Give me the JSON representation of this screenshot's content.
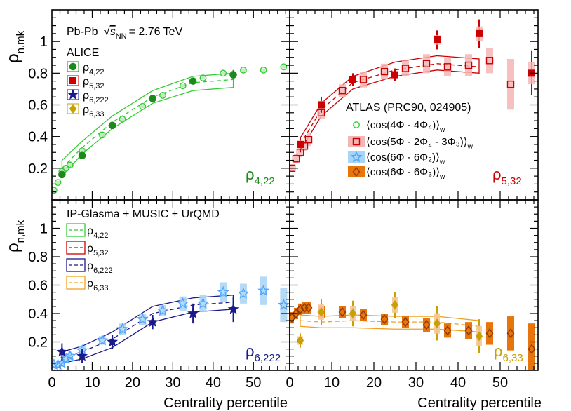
{
  "figure": {
    "ylabel_main": "ρ",
    "ylabel_sub": "n,mk",
    "xlabel": "Centrality percentile"
  },
  "colors": {
    "green": "#1b8a1b",
    "green_light": "#33cc33",
    "green_band": "#b8e8b8",
    "red": "#cc0000",
    "red_band": "#f5b5b5",
    "blue": "#1a1a8c",
    "blue_light": "#4da6ff",
    "blue_band": "#a8d4f5",
    "gold": "#c8a000",
    "gold_band": "#f5c896",
    "orange": "#e8740c",
    "orange_line": "#f0a020",
    "dark": "#8b3a0a"
  },
  "legend_alice": {
    "system": "Pb-Pb",
    "energy_var": "s",
    "energy_sub": "NN",
    "energy_value": "= 2.76 TeV",
    "experiment": "ALICE",
    "entries": [
      {
        "main": "ρ",
        "sub": "4,22"
      },
      {
        "main": "ρ",
        "sub": "5,32"
      },
      {
        "main": "ρ",
        "sub": "6,222"
      },
      {
        "main": "ρ",
        "sub": "6,33"
      }
    ]
  },
  "legend_atlas": {
    "title": "ATLAS (PRC90, 024905)",
    "entries": [
      {
        "text": "⟨cos(4Φ - 4Φ₄)⟩",
        "sub": "w"
      },
      {
        "text": "⟨cos(5Φ - 2Φ₂ - 3Φ₃)⟩",
        "sub": "w"
      },
      {
        "text": "⟨cos(6Φ - 6Φ₂)⟩",
        "sub": "w"
      },
      {
        "text": "⟨cos(6Φ - 6Φ₃)⟩",
        "sub": "w"
      }
    ]
  },
  "legend_model": {
    "title": "IP-Glasma + MUSIC + UrQMD",
    "entries": [
      {
        "main": "ρ",
        "sub": "4,22"
      },
      {
        "main": "ρ",
        "sub": "5,32"
      },
      {
        "main": "ρ",
        "sub": "6,222"
      },
      {
        "main": "ρ",
        "sub": "6,33"
      }
    ]
  },
  "chart_data": [
    {
      "type": "scatter",
      "panel": "top-left",
      "label_main": "ρ",
      "label_sub": "4,22",
      "xlim": [
        0,
        59
      ],
      "ylim": [
        0,
        1.2
      ],
      "yticks": [
        0.2,
        0.4,
        0.6,
        0.8,
        1
      ],
      "ytick_labels": [
        "0.2",
        "0.4",
        "0.6",
        "0.8",
        "1"
      ],
      "xticks": [
        0,
        10,
        20,
        30,
        40,
        50
      ],
      "xtick_labels": [
        "0",
        "10",
        "20",
        "30",
        "40",
        "50"
      ],
      "alice": {
        "x": [
          2.5,
          7.5,
          15,
          25,
          35,
          45
        ],
        "y": [
          0.16,
          0.28,
          0.47,
          0.64,
          0.75,
          0.79
        ],
        "err": [
          0.02,
          0.02,
          0.02,
          0.02,
          0.02,
          0.03
        ]
      },
      "atlas": {
        "x": [
          0.5,
          1.5,
          2.5,
          3.5,
          4.5,
          7.5,
          12.5,
          17.5,
          22.5,
          27.5,
          32.5,
          37.5,
          42.5,
          47.5,
          52.5,
          57.5
        ],
        "y": [
          0.06,
          0.11,
          0.18,
          0.2,
          0.22,
          0.31,
          0.41,
          0.51,
          0.59,
          0.66,
          0.72,
          0.77,
          0.8,
          0.82,
          0.82,
          0.84
        ],
        "band": [
          0.01,
          0.01,
          0.01,
          0.01,
          0.01,
          0.01,
          0.01,
          0.01,
          0.01,
          0.01,
          0.01,
          0.01,
          0.01,
          0.01,
          0.01,
          0.01
        ]
      },
      "model": {
        "x": [
          2.5,
          7.5,
          15,
          25,
          35,
          45
        ],
        "mid": [
          0.2,
          0.33,
          0.49,
          0.65,
          0.74,
          0.76
        ],
        "hi": [
          0.25,
          0.37,
          0.53,
          0.69,
          0.78,
          0.8
        ],
        "lo": [
          0.15,
          0.29,
          0.45,
          0.61,
          0.69,
          0.71
        ]
      }
    },
    {
      "type": "scatter",
      "panel": "top-right",
      "label_main": "ρ",
      "label_sub": "5,32",
      "xlim": [
        0,
        59
      ],
      "ylim": [
        0,
        1.2
      ],
      "alice": {
        "x": [
          2.5,
          7.5,
          15,
          25,
          35,
          45,
          57.5
        ],
        "y": [
          0.35,
          0.6,
          0.76,
          0.79,
          1.01,
          1.05,
          0.8
        ],
        "err": [
          0.05,
          0.05,
          0.04,
          0.04,
          0.06,
          0.09,
          0.14
        ]
      },
      "atlas": {
        "x": [
          0.5,
          1.5,
          2.5,
          3.5,
          4.5,
          7.5,
          12.5,
          17.5,
          22.5,
          27.5,
          32.5,
          37.5,
          42.5,
          47.5,
          52.5
        ],
        "y": [
          0.2,
          0.26,
          0.3,
          0.34,
          0.38,
          0.55,
          0.69,
          0.76,
          0.81,
          0.83,
          0.86,
          0.84,
          0.85,
          0.88,
          0.73
        ],
        "band": [
          0.02,
          0.03,
          0.03,
          0.03,
          0.04,
          0.04,
          0.04,
          0.05,
          0.05,
          0.05,
          0.06,
          0.06,
          0.07,
          0.08,
          0.16
        ]
      },
      "model": {
        "x": [
          2.5,
          7.5,
          15,
          25,
          35,
          45
        ],
        "mid": [
          0.35,
          0.57,
          0.74,
          0.82,
          0.86,
          0.84
        ],
        "hi": [
          0.39,
          0.61,
          0.78,
          0.87,
          0.91,
          0.89
        ],
        "lo": [
          0.31,
          0.53,
          0.7,
          0.78,
          0.82,
          0.8
        ]
      }
    },
    {
      "type": "scatter",
      "panel": "bottom-left",
      "label_main": "ρ",
      "label_sub": "6,222",
      "xlim": [
        0,
        59
      ],
      "ylim": [
        0,
        1.2
      ],
      "alice": {
        "x": [
          2.5,
          7.5,
          15,
          25,
          35,
          45
        ],
        "y": [
          0.13,
          0.1,
          0.2,
          0.34,
          0.4,
          0.43
        ],
        "err": [
          0.06,
          0.05,
          0.05,
          0.05,
          0.07,
          0.09
        ]
      },
      "atlas": {
        "x": [
          0.5,
          1.5,
          2.5,
          3.5,
          4.5,
          7.5,
          12.5,
          17.5,
          22.5,
          27.5,
          32.5,
          37.5,
          42.5,
          47.5,
          52.5,
          57.5
        ],
        "y": [
          0.04,
          0.04,
          0.05,
          0.08,
          0.1,
          0.14,
          0.21,
          0.29,
          0.36,
          0.42,
          0.47,
          0.47,
          0.55,
          0.54,
          0.56,
          0.46
        ],
        "band": [
          0.02,
          0.02,
          0.02,
          0.03,
          0.03,
          0.03,
          0.03,
          0.04,
          0.04,
          0.04,
          0.05,
          0.06,
          0.07,
          0.07,
          0.1,
          0.12
        ]
      },
      "model": {
        "x": [
          2.5,
          7.5,
          15,
          25,
          35,
          45
        ],
        "mid": [
          0.09,
          0.13,
          0.22,
          0.4,
          0.46,
          0.48
        ],
        "hi": [
          0.13,
          0.17,
          0.27,
          0.45,
          0.51,
          0.53
        ],
        "lo": [
          0.05,
          0.08,
          0.16,
          0.34,
          0.41,
          0.43
        ]
      }
    },
    {
      "type": "scatter",
      "panel": "bottom-right",
      "label_main": "ρ",
      "label_sub": "6,33",
      "xlim": [
        0,
        59
      ],
      "ylim": [
        0,
        1.2
      ],
      "alice": {
        "x": [
          2.5,
          7.5,
          15,
          25,
          35,
          45
        ],
        "y": [
          0.21,
          0.41,
          0.4,
          0.46,
          0.33,
          0.24
        ],
        "err": [
          0.05,
          0.09,
          0.09,
          0.09,
          0.12,
          0.12
        ]
      },
      "atlas": {
        "x": [
          0.5,
          1.5,
          2.5,
          3.5,
          4.5,
          7.5,
          12.5,
          17.5,
          22.5,
          27.5,
          32.5,
          37.5,
          42.5,
          47.5,
          52.5,
          57.5
        ],
        "y": [
          0.37,
          0.4,
          0.43,
          0.44,
          0.44,
          0.41,
          0.41,
          0.39,
          0.36,
          0.34,
          0.32,
          0.28,
          0.28,
          0.26,
          0.26,
          0.15
        ],
        "band": [
          0.04,
          0.04,
          0.04,
          0.04,
          0.04,
          0.04,
          0.04,
          0.04,
          0.04,
          0.04,
          0.05,
          0.05,
          0.06,
          0.08,
          0.12,
          0.18
        ]
      },
      "model": {
        "x": [
          2.5,
          7.5,
          15,
          25,
          35,
          45
        ],
        "mid": [
          0.35,
          0.34,
          0.35,
          0.34,
          0.34,
          0.31
        ],
        "hi": [
          0.39,
          0.38,
          0.39,
          0.38,
          0.38,
          0.35
        ],
        "lo": [
          0.31,
          0.3,
          0.3,
          0.29,
          0.29,
          0.27
        ]
      }
    }
  ]
}
